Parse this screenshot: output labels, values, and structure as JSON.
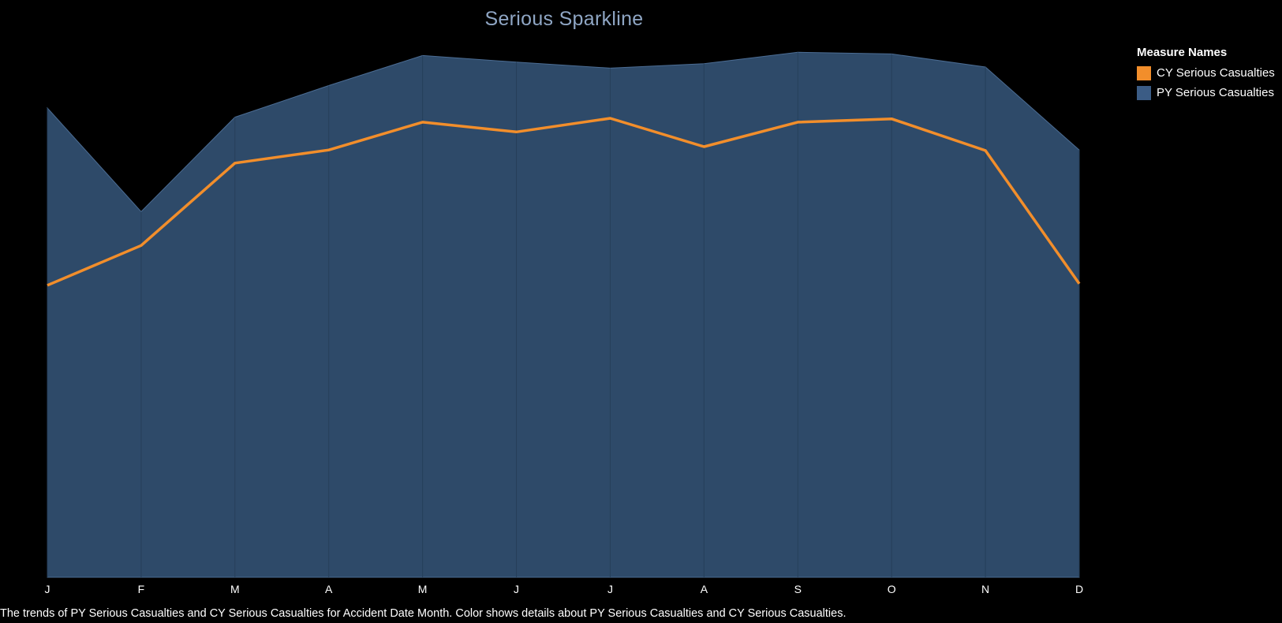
{
  "title": "Serious Sparkline",
  "caption": "The trends of PY Serious Casualties and CY Serious Casualties for Accident Date Month.  Color shows details about PY Serious Casualties and CY Serious Casualties.",
  "legend": {
    "title": "Measure Names",
    "items": [
      {
        "label": "CY Serious Casualties",
        "color": "#f28e2b"
      },
      {
        "label": "PY Serious Casualties",
        "color": "#3b5c85"
      }
    ]
  },
  "colors": {
    "background": "#000000",
    "area_fill": "#2e4a69",
    "area_edge": "#4b6c93",
    "line": "#f28e2b"
  },
  "chart_data": {
    "type": "area",
    "categories": [
      "J",
      "F",
      "M",
      "A",
      "M",
      "J",
      "J",
      "A",
      "S",
      "O",
      "N",
      "D"
    ],
    "ylim": [
      0,
      100
    ],
    "grid": false,
    "legend_position": "right",
    "series": [
      {
        "name": "PY Serious Casualties",
        "mark": "area",
        "values": [
          86,
          67,
          84.3,
          90.1,
          95.6,
          94.4,
          93.3,
          94.1,
          96.2,
          95.9,
          93.5,
          78.3
        ]
      },
      {
        "name": "CY Serious Casualties",
        "mark": "line",
        "values": [
          53.5,
          60.8,
          75.9,
          78.3,
          83.4,
          81.6,
          84.1,
          78.9,
          83.4,
          84,
          78.2,
          53.8
        ]
      }
    ]
  }
}
